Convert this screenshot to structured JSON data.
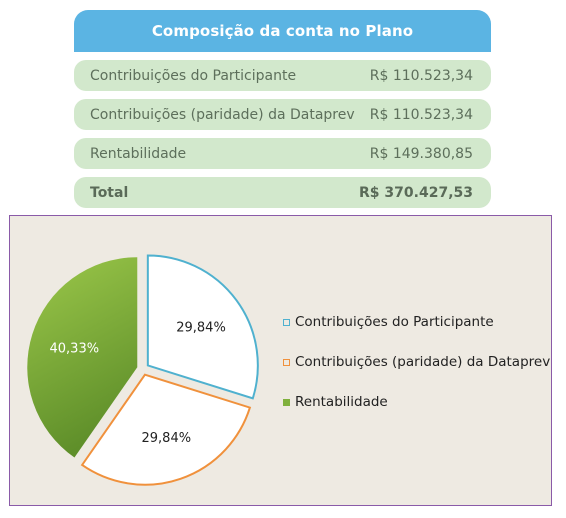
{
  "table": {
    "title": "Composição da conta no Plano",
    "rows": [
      {
        "label": "Contribuições do Participante",
        "value": "R$ 110.523,34"
      },
      {
        "label": "Contribuições (paridade) da Dataprev",
        "value": "R$ 110.523,34"
      },
      {
        "label": "Rentabilidade",
        "value": "R$ 149.380,85"
      }
    ],
    "total": {
      "label": "Total",
      "value": "R$ 370.427,53"
    }
  },
  "chart_data": {
    "type": "pie",
    "categories": [
      "Contribuições do Participante",
      "Contribuições (paridade) da Dataprev",
      "Rentabilidade"
    ],
    "values": [
      29.84,
      29.84,
      40.33
    ],
    "value_labels": [
      "29,84%",
      "29,84%",
      "40,33%"
    ],
    "colors": [
      "#4fb1cf",
      "#f0913c",
      "#7fb03c"
    ],
    "legend_position": "right",
    "title": ""
  }
}
